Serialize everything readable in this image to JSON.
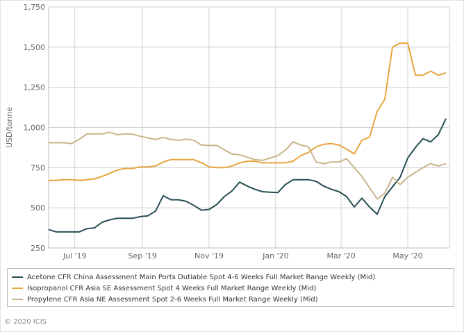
{
  "chart_data": {
    "type": "line",
    "ylabel": "USD/tonne",
    "ylim": [
      250,
      1750
    ],
    "yticks": [
      "250",
      "500",
      "750",
      "1,000",
      "1,250",
      "1,500",
      "1,750"
    ],
    "ytick_values": [
      250,
      500,
      750,
      1000,
      1250,
      1500,
      1750
    ],
    "xticks": [
      {
        "label": "Jul '19",
        "date": "2019-07-01"
      },
      {
        "label": "Sep '19",
        "date": "2019-09-01"
      },
      {
        "label": "Nov '19",
        "date": "2019-11-01"
      },
      {
        "label": "Jan '20",
        "date": "2020-01-01"
      },
      {
        "label": "Mar '20",
        "date": "2020-03-01"
      },
      {
        "label": "May '20",
        "date": "2020-05-01"
      }
    ],
    "x_start": "2019-06-07",
    "x_end": "2020-06-05",
    "x_interval": "weekly",
    "grid": true,
    "legend_placement": "bottom",
    "series": [
      {
        "name": "Acetone CFR China Assessment Main Ports Dutiable Spot 4-6 Weeks Full Market Range Weekly (Mid)",
        "color": "#264d52",
        "values": [
          365,
          350,
          350,
          350,
          350,
          370,
          375,
          410,
          425,
          435,
          435,
          435,
          445,
          450,
          480,
          575,
          550,
          550,
          540,
          515,
          485,
          490,
          520,
          570,
          605,
          660,
          635,
          615,
          600,
          597,
          595,
          645,
          675,
          675,
          675,
          665,
          635,
          615,
          600,
          570,
          505,
          560,
          505,
          460,
          570,
          630,
          690,
          810,
          875,
          930,
          910,
          955,
          1055
        ]
      },
      {
        "name": "Isopropanol CFR Asia SE Assessment Spot 4 Weeks Full Market Range Weekly (Mid)",
        "color": "#e8a33d",
        "values": [
          670,
          670,
          675,
          675,
          670,
          675,
          680,
          695,
          715,
          735,
          745,
          745,
          755,
          755,
          760,
          785,
          800,
          800,
          800,
          800,
          780,
          755,
          750,
          750,
          760,
          780,
          790,
          790,
          780,
          780,
          780,
          780,
          790,
          825,
          845,
          880,
          895,
          900,
          890,
          865,
          835,
          920,
          940,
          1100,
          1175,
          1500,
          1525,
          1525,
          1325,
          1325,
          1350,
          1325,
          1340
        ]
      },
      {
        "name": "Propylene CFR Asia NE Assessment Spot 2-6 Weeks Full Market Range Weekly (Mid)",
        "color": "#c8b48a",
        "values": [
          905,
          905,
          905,
          900,
          925,
          960,
          960,
          960,
          970,
          955,
          960,
          958,
          945,
          935,
          925,
          938,
          925,
          920,
          928,
          920,
          890,
          888,
          888,
          860,
          835,
          830,
          815,
          800,
          795,
          810,
          825,
          860,
          910,
          890,
          880,
          785,
          775,
          785,
          785,
          805,
          750,
          695,
          625,
          555,
          590,
          690,
          645,
          690,
          720,
          750,
          775,
          760,
          775
        ]
      }
    ]
  },
  "footer": {
    "copyright": "© 2020 ICIS"
  }
}
